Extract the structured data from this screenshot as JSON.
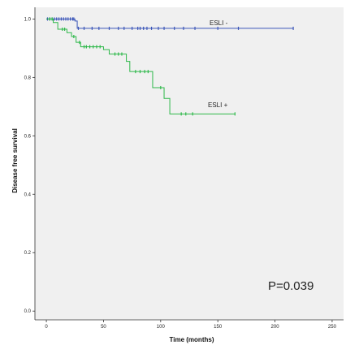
{
  "chart_data": {
    "type": "line",
    "subtype": "kaplan-meier",
    "title": "",
    "xlabel": "Time (months)",
    "ylabel": "Disease free survival",
    "xlim": [
      -10,
      260
    ],
    "ylim": [
      -0.03,
      1.04
    ],
    "xticks": [
      0,
      50,
      100,
      150,
      200,
      250
    ],
    "yticks": [
      0.0,
      0.2,
      0.4,
      0.6,
      0.8,
      1.0
    ],
    "xtick_labels": [
      "0",
      "50",
      "100",
      "150",
      "200",
      "250"
    ],
    "ytick_labels": [
      "0.0",
      "0.2",
      "0.4",
      "0.6",
      "0.8",
      "1.0"
    ],
    "grid": false,
    "background": "#f0f0f0",
    "annotation": "P=0.039",
    "series": [
      {
        "name": "ESLI -",
        "color": "#3a55b8",
        "steps": [
          [
            0,
            1.0
          ],
          [
            25,
            1.0
          ],
          [
            25,
            0.993
          ],
          [
            27,
            0.993
          ],
          [
            27,
            0.968
          ],
          [
            216,
            0.968
          ]
        ],
        "censor": [
          1,
          3,
          5,
          7,
          9,
          11,
          13,
          15,
          17,
          19,
          21,
          23,
          24,
          28,
          33,
          40,
          46,
          55,
          63,
          68,
          75,
          80,
          82,
          85,
          88,
          92,
          98,
          103,
          112,
          120,
          130,
          150,
          168,
          216
        ]
      },
      {
        "name": "ESLI +",
        "color": "#2eb84a",
        "steps": [
          [
            0,
            1.0
          ],
          [
            6,
            1.0
          ],
          [
            6,
            0.988
          ],
          [
            10,
            0.988
          ],
          [
            10,
            0.965
          ],
          [
            18,
            0.965
          ],
          [
            18,
            0.953
          ],
          [
            22,
            0.953
          ],
          [
            22,
            0.94
          ],
          [
            26,
            0.94
          ],
          [
            26,
            0.92
          ],
          [
            30,
            0.92
          ],
          [
            30,
            0.905
          ],
          [
            50,
            0.905
          ],
          [
            50,
            0.895
          ],
          [
            55,
            0.895
          ],
          [
            55,
            0.88
          ],
          [
            70,
            0.88
          ],
          [
            70,
            0.855
          ],
          [
            73,
            0.855
          ],
          [
            73,
            0.82
          ],
          [
            93,
            0.82
          ],
          [
            93,
            0.765
          ],
          [
            103,
            0.765
          ],
          [
            103,
            0.728
          ],
          [
            108,
            0.728
          ],
          [
            108,
            0.675
          ],
          [
            165,
            0.675
          ]
        ],
        "censor": [
          3,
          5,
          14,
          16,
          24,
          29,
          33,
          35,
          38,
          41,
          44,
          47,
          60,
          63,
          66,
          78,
          82,
          86,
          89,
          100,
          118,
          122,
          128,
          165
        ]
      }
    ]
  }
}
